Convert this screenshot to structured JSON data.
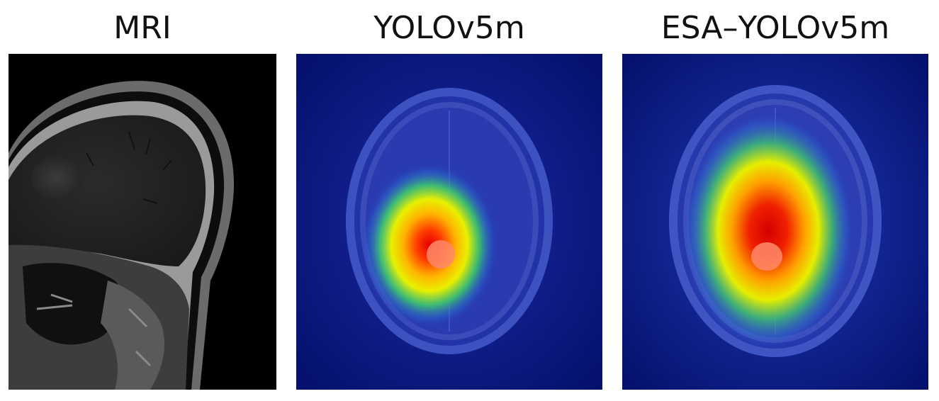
{
  "panels": [
    {
      "title": "MRI",
      "kind": "sagittal-mri"
    },
    {
      "title": "YOLOv5m",
      "kind": "heatmap-overlay"
    },
    {
      "title": "ESA–YOLOv5m",
      "kind": "heatmap-overlay"
    }
  ],
  "colors": {
    "background": "#ffffff",
    "heatmap_low": "#0a1a8c",
    "heatmap_mid": "#ffff00",
    "heatmap_high": "#d40000"
  }
}
